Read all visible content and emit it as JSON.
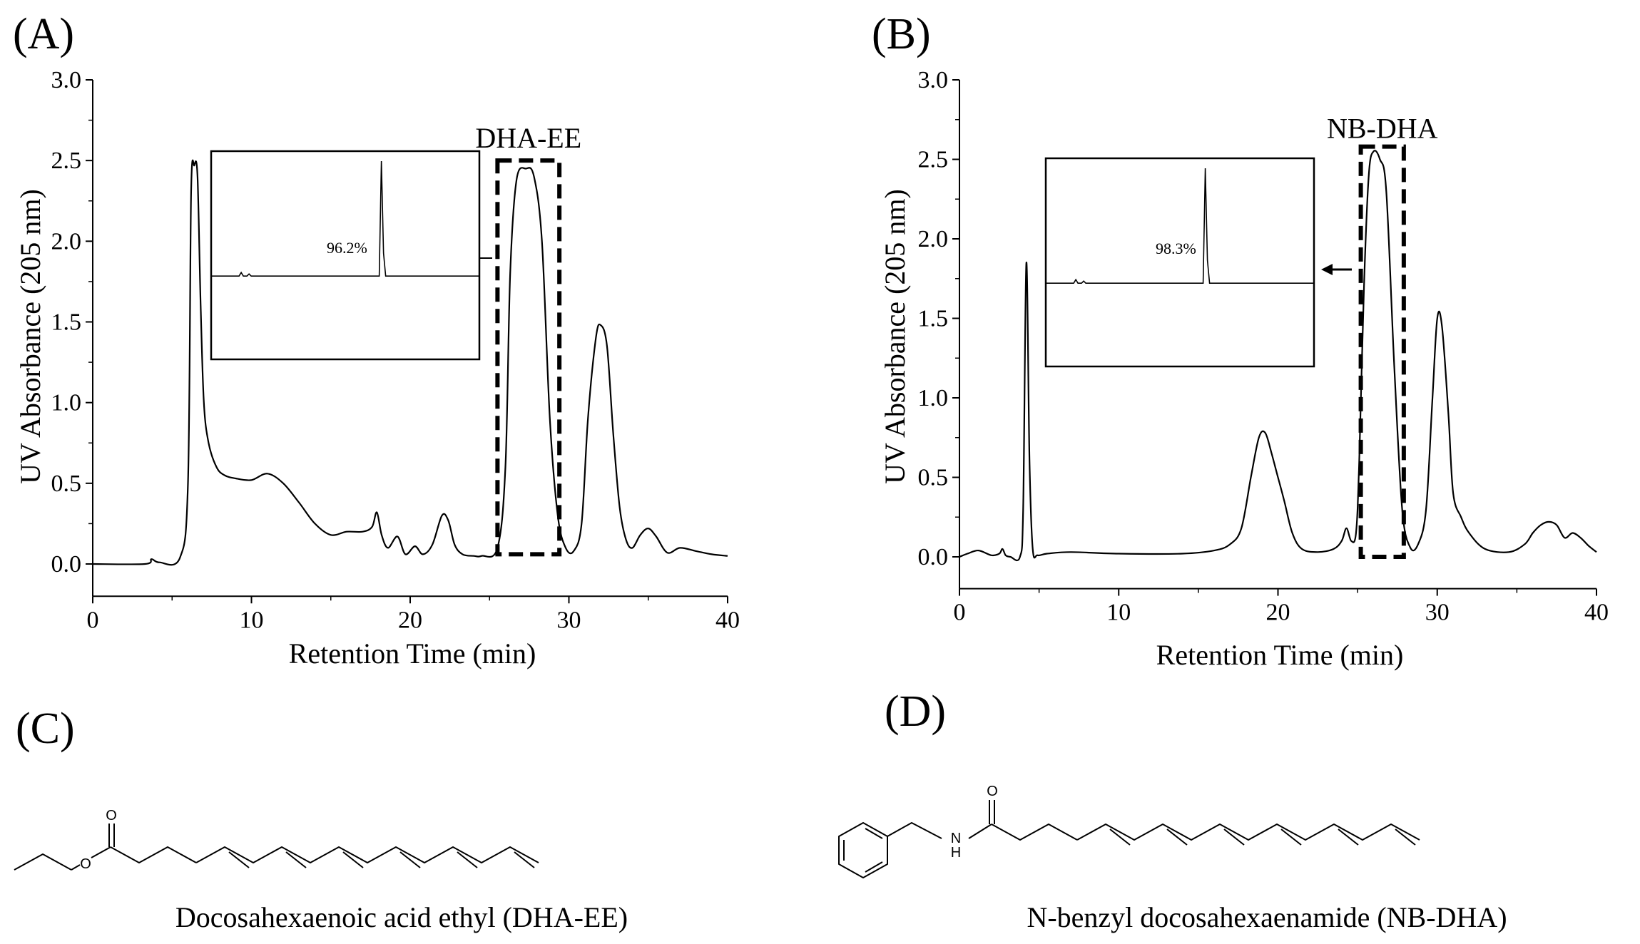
{
  "panels": {
    "A": "(A)",
    "B": "(B)",
    "C": "(C)",
    "D": "(D)"
  },
  "colors": {
    "line": "#000000",
    "background": "#ffffff"
  },
  "chart_data": [
    {
      "type": "line",
      "panel": "A",
      "xlabel": "Retention Time (min)",
      "ylabel": "UV Absorbance (205 nm)",
      "xlim": [
        0,
        40
      ],
      "ylim": [
        -0.2,
        3.0
      ],
      "xticks": [
        "0",
        "10",
        "20",
        "30",
        "40"
      ],
      "yticks": [
        "0.0",
        "0.5",
        "1.0",
        "1.5",
        "2.0",
        "2.5",
        "3.0"
      ],
      "grid": false,
      "series": [
        {
          "x": [
            0,
            3.3,
            3.7,
            4.2,
            5.5,
            6.0,
            6.2,
            6.4,
            6.6,
            6.8,
            7.0,
            7.3,
            7.8,
            8.3,
            9.0,
            10.0,
            11.0,
            12.0,
            13.0,
            14.0,
            15.0,
            16.0,
            17.0,
            17.6,
            17.9,
            18.2,
            18.6,
            19.2,
            19.7,
            20.3,
            20.8,
            21.4,
            22.0,
            22.4,
            22.8,
            23.3,
            24.0,
            24.5,
            25.5,
            26.0,
            26.3,
            26.7,
            27.3,
            27.8,
            28.3,
            28.8,
            29.3,
            29.8,
            30.3,
            30.8,
            31.2,
            31.7,
            32.0,
            32.4,
            32.8,
            33.2,
            33.6,
            34.0,
            34.5,
            35.0,
            35.5,
            36.2,
            37.0,
            38.0,
            39.0,
            40.0
          ],
          "y": [
            0.0,
            0.0,
            0.03,
            0.01,
            0.04,
            0.5,
            2.3,
            2.47,
            2.4,
            1.6,
            1.0,
            0.75,
            0.6,
            0.55,
            0.53,
            0.52,
            0.56,
            0.5,
            0.38,
            0.25,
            0.18,
            0.2,
            0.2,
            0.23,
            0.32,
            0.18,
            0.1,
            0.17,
            0.06,
            0.11,
            0.06,
            0.12,
            0.3,
            0.27,
            0.12,
            0.06,
            0.05,
            0.05,
            0.1,
            0.6,
            1.8,
            2.38,
            2.45,
            2.4,
            2.0,
            0.9,
            0.3,
            0.1,
            0.08,
            0.25,
            0.9,
            1.4,
            1.48,
            1.35,
            0.8,
            0.35,
            0.15,
            0.1,
            0.18,
            0.22,
            0.17,
            0.07,
            0.1,
            0.08,
            0.06,
            0.05
          ]
        }
      ],
      "annotations": {
        "peak_label": "DHA-EE",
        "highlight_x": [
          25.5,
          29.4
        ],
        "highlight_y": [
          0.06,
          2.5
        ]
      },
      "inset": {
        "purity_label": "96.2%",
        "peak_position": 0.64,
        "peak_height": 0.92
      }
    },
    {
      "type": "line",
      "panel": "B",
      "xlabel": "Retention Time (min)",
      "ylabel": "UV Absorbance (205 nm)",
      "xlim": [
        0,
        40
      ],
      "ylim": [
        -0.2,
        3.0
      ],
      "xticks": [
        "0",
        "10",
        "20",
        "30",
        "40"
      ],
      "yticks": [
        "0.0",
        "0.5",
        "1.0",
        "1.5",
        "2.0",
        "2.5",
        "3.0"
      ],
      "grid": false,
      "series": [
        {
          "x": [
            0,
            0.5,
            1.2,
            2.0,
            2.5,
            2.7,
            2.9,
            3.2,
            3.8,
            4.0,
            4.2,
            4.4,
            4.6,
            4.9,
            5.5,
            7.0,
            10.0,
            14.0,
            16.0,
            17.0,
            17.7,
            18.3,
            18.8,
            19.2,
            19.6,
            20.0,
            20.4,
            20.9,
            21.5,
            22.5,
            23.5,
            24.0,
            24.3,
            24.6,
            24.9,
            25.1,
            25.4,
            25.7,
            26.0,
            26.4,
            26.8,
            27.3,
            27.8,
            28.3,
            28.8,
            29.3,
            29.7,
            30.0,
            30.3,
            30.7,
            31.0,
            31.5,
            32.0,
            33.0,
            34.5,
            35.5,
            36.0,
            36.5,
            37.0,
            37.5,
            38.0,
            38.5,
            39.0,
            39.5,
            40.0
          ],
          "y": [
            0.0,
            0.02,
            0.04,
            0.01,
            0.02,
            0.05,
            0.01,
            0.0,
            0.0,
            0.3,
            1.85,
            0.6,
            0.05,
            0.01,
            0.02,
            0.03,
            0.02,
            0.02,
            0.04,
            0.08,
            0.18,
            0.5,
            0.75,
            0.78,
            0.65,
            0.5,
            0.35,
            0.15,
            0.05,
            0.03,
            0.05,
            0.1,
            0.18,
            0.1,
            0.15,
            0.6,
            1.7,
            2.4,
            2.55,
            2.5,
            2.3,
            1.2,
            0.3,
            0.06,
            0.08,
            0.3,
            1.0,
            1.5,
            1.45,
            0.9,
            0.4,
            0.25,
            0.15,
            0.05,
            0.03,
            0.08,
            0.15,
            0.2,
            0.22,
            0.2,
            0.12,
            0.15,
            0.12,
            0.07,
            0.03
          ]
        }
      ],
      "annotations": {
        "peak_label": "NB-DHA",
        "highlight_x": [
          25.2,
          27.9
        ],
        "highlight_y": [
          0.0,
          2.58
        ]
      },
      "inset": {
        "purity_label": "98.3%",
        "peak_position": 0.6,
        "peak_height": 0.92
      }
    }
  ],
  "structures": {
    "C": {
      "caption": "Docosahexaenoic acid ethyl (DHA-EE)",
      "atoms": {
        "carbonyl_oxygen": "O",
        "ester_oxygen": "O"
      }
    },
    "D": {
      "caption": "N-benzyl docosahexaenamide (NB-DHA)",
      "atoms": {
        "carbonyl_oxygen": "O",
        "nitrogen": "N",
        "hydrogen": "H"
      }
    }
  }
}
